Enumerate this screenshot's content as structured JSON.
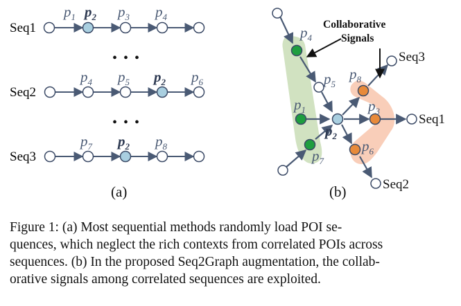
{
  "panel_a": {
    "label": "(a)",
    "ellipsis": "• • •",
    "rows": [
      {
        "seq": "Seq1",
        "pois": [
          "p",
          "p",
          "p",
          "p"
        ],
        "subs": [
          "1",
          "2",
          "3",
          "4"
        ]
      },
      {
        "seq": "Seq2",
        "pois": [
          "p",
          "p",
          "p",
          "p"
        ],
        "subs": [
          "4",
          "5",
          "2",
          "6"
        ]
      },
      {
        "seq": "Seq3",
        "pois": [
          "p",
          "p",
          "p"
        ],
        "subs": [
          "7",
          "2",
          "8"
        ]
      }
    ]
  },
  "panel_b": {
    "label": "(b)",
    "callout": {
      "line1": "Collaborative",
      "line2": "Signals"
    },
    "seq_labels": [
      "Seq3",
      "Seq1",
      "Seq2"
    ],
    "poi_labels": [
      {
        "p": "p",
        "sub": "4"
      },
      {
        "p": "p",
        "sub": "5"
      },
      {
        "p": "p",
        "sub": "1"
      },
      {
        "p": "p",
        "sub": "2"
      },
      {
        "p": "p",
        "sub": "7"
      },
      {
        "p": "p",
        "sub": "8"
      },
      {
        "p": "p",
        "sub": "3"
      },
      {
        "p": "p",
        "sub": "6"
      }
    ]
  },
  "colors": {
    "edge": "#4a5a74",
    "node_stroke": "#3b4a66",
    "highlight_node": "#a9cfe0",
    "green_node": "#1e9e3f",
    "orange_node": "#e88a3a",
    "green_band": "#c9ddb6",
    "orange_band": "#f8c9b1"
  },
  "caption": {
    "line1": "Figure 1: (a) Most sequential methods randomly load POI se-",
    "line2": "quences, which neglect the rich contexts from correlated POIs across",
    "line3": "sequences. (b) In the proposed Seq2Graph augmentation, the collab-",
    "line4": "orative signals among correlated sequences are exploited."
  }
}
